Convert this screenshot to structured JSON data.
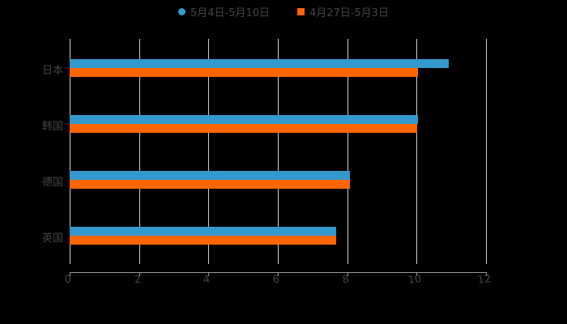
{
  "legend": [
    {
      "label": "5月4日-5月10日",
      "color": "#3399cc",
      "marker": "circle"
    },
    {
      "label": "4月27日-5月3日",
      "color": "#ff6600",
      "marker": "square"
    }
  ],
  "chart_data": {
    "type": "bar",
    "orientation": "horizontal",
    "title": "",
    "xlabel": "",
    "ylabel": "",
    "categories": [
      "日本",
      "韩国",
      "德国",
      "英国"
    ],
    "series": [
      {
        "name": "5月4日-5月10日",
        "color": "#3399cc",
        "values": [
          10.93,
          10.05,
          8.08,
          7.69
        ]
      },
      {
        "name": "4月27日-5月3日",
        "color": "#ff6600",
        "values": [
          10.05,
          10.02,
          8.08,
          7.69
        ]
      }
    ],
    "xlim": [
      0,
      12
    ],
    "xticks": [
      "0",
      "2",
      "4",
      "6",
      "8",
      "10",
      "12"
    ],
    "grid": true,
    "legend_position": "top"
  }
}
